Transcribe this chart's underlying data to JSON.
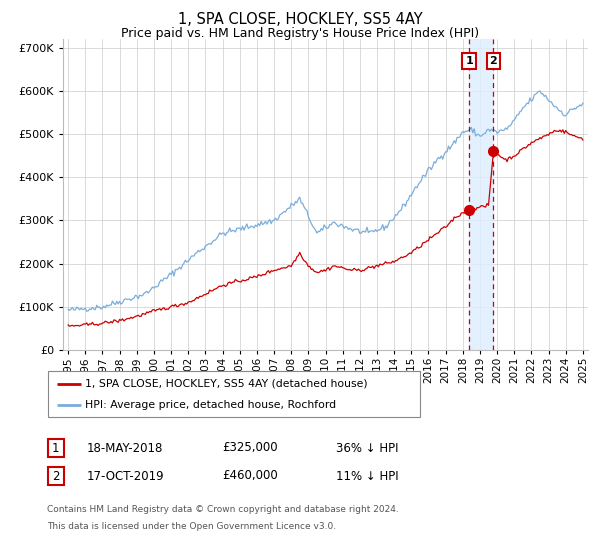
{
  "title": "1, SPA CLOSE, HOCKLEY, SS5 4AY",
  "subtitle": "Price paid vs. HM Land Registry's House Price Index (HPI)",
  "xlim": [
    1994.7,
    2025.3
  ],
  "ylim": [
    0,
    720000
  ],
  "yticks": [
    0,
    100000,
    200000,
    300000,
    400000,
    500000,
    600000,
    700000
  ],
  "xticks": [
    1995,
    1996,
    1997,
    1998,
    1999,
    2000,
    2001,
    2002,
    2003,
    2004,
    2005,
    2006,
    2007,
    2008,
    2009,
    2010,
    2011,
    2012,
    2013,
    2014,
    2015,
    2016,
    2017,
    2018,
    2019,
    2020,
    2021,
    2022,
    2023,
    2024,
    2025
  ],
  "sale1_x": 2018.37,
  "sale1_y": 325000,
  "sale2_x": 2019.79,
  "sale2_y": 460000,
  "vline1_x": 2018.37,
  "vline2_x": 2019.79,
  "shade_x1": 2018.37,
  "shade_x2": 2019.79,
  "hpi_color": "#7aaddc",
  "price_color": "#cc0000",
  "sale_dot_color": "#cc0000",
  "background_color": "#ffffff",
  "plot_bg_color": "#ffffff",
  "grid_color": "#cccccc",
  "shade_color": "#ddeeff",
  "legend_label1": "1, SPA CLOSE, HOCKLEY, SS5 4AY (detached house)",
  "legend_label2": "HPI: Average price, detached house, Rochford",
  "footnote1": "Contains HM Land Registry data © Crown copyright and database right 2024.",
  "footnote2": "This data is licensed under the Open Government Licence v3.0.",
  "table_row1": [
    "1",
    "18-MAY-2018",
    "£325,000",
    "36% ↓ HPI"
  ],
  "table_row2": [
    "2",
    "17-OCT-2019",
    "£460,000",
    "11% ↓ HPI"
  ],
  "hpi_anchors_x": [
    1995.0,
    1997.0,
    1999.5,
    2001.0,
    2002.5,
    2004.0,
    2005.0,
    2007.0,
    2008.5,
    2009.5,
    2010.5,
    2011.5,
    2012.5,
    2013.5,
    2014.5,
    2015.5,
    2016.5,
    2017.5,
    2018.0,
    2018.5,
    2019.0,
    2019.5,
    2020.0,
    2020.5,
    2021.0,
    2021.5,
    2022.0,
    2022.5,
    2023.0,
    2023.5,
    2024.0,
    2024.5,
    2025.0
  ],
  "hpi_anchors_y": [
    92000,
    100000,
    130000,
    175000,
    225000,
    270000,
    280000,
    300000,
    350000,
    270000,
    295000,
    280000,
    270000,
    285000,
    330000,
    390000,
    440000,
    480000,
    505000,
    510000,
    495000,
    510000,
    505000,
    510000,
    530000,
    560000,
    580000,
    600000,
    580000,
    560000,
    545000,
    560000,
    570000
  ],
  "price_anchors_x": [
    1995.0,
    1996.0,
    1997.0,
    1998.0,
    1999.0,
    2000.0,
    2001.0,
    2002.0,
    2003.0,
    2004.0,
    2005.0,
    2006.0,
    2007.0,
    2008.0,
    2008.5,
    2009.0,
    2009.5,
    2010.0,
    2010.5,
    2011.0,
    2011.5,
    2012.0,
    2012.5,
    2013.0,
    2013.5,
    2014.0,
    2014.5,
    2015.0,
    2015.5,
    2016.0,
    2016.5,
    2017.0,
    2017.5,
    2018.0,
    2018.37,
    2018.8,
    2019.0,
    2019.5,
    2019.79,
    2020.0,
    2020.5,
    2021.0,
    2021.5,
    2022.0,
    2022.5,
    2023.0,
    2023.5,
    2024.0,
    2024.5,
    2025.0
  ],
  "price_anchors_y": [
    55000,
    58000,
    62000,
    68000,
    78000,
    90000,
    100000,
    110000,
    130000,
    150000,
    160000,
    170000,
    185000,
    195000,
    225000,
    195000,
    180000,
    185000,
    195000,
    190000,
    185000,
    185000,
    190000,
    195000,
    200000,
    205000,
    215000,
    225000,
    240000,
    255000,
    270000,
    285000,
    305000,
    318000,
    325000,
    330000,
    330000,
    335000,
    460000,
    455000,
    440000,
    450000,
    465000,
    480000,
    490000,
    500000,
    510000,
    505000,
    495000,
    490000
  ]
}
